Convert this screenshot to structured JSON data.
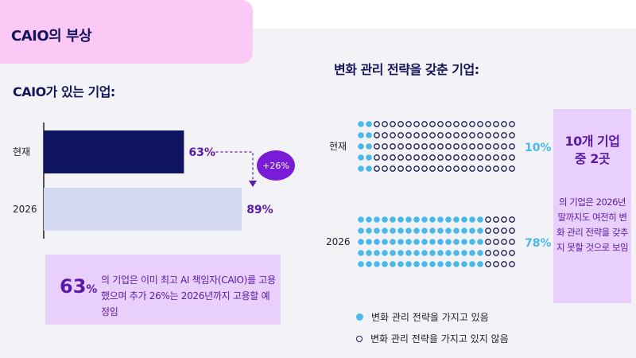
{
  "title": "CAIO의 부상",
  "subtitle_left": "CAIO가 있는 기업:",
  "subtitle_right": "변화 관리 전략을 갖춘 기업:",
  "chart_data": [
    {
      "type": "bar",
      "orientation": "horizontal",
      "title": "CAIO가 있는 기업:",
      "categories": [
        "현재",
        "2026"
      ],
      "values": [
        63,
        89
      ],
      "value_labels": [
        "63%",
        "89%"
      ],
      "change_label": "+26%",
      "xlim": [
        0,
        100
      ],
      "colors": [
        "#0f1560",
        "#d5daf2"
      ]
    },
    {
      "type": "dot-matrix",
      "title": "변화 관리 전략을 갖춘 기업:",
      "categories": [
        "현재",
        "2026"
      ],
      "values": [
        10,
        78
      ],
      "value_labels": [
        "10%",
        "78%"
      ],
      "rows": 5,
      "cols": 20,
      "legend": [
        {
          "label": "변화 관리 전략을 가지고 있음",
          "color": "#49b8ea"
        },
        {
          "label": "변화 관리 전략을 가지고 있지 않음",
          "color": "#1b1b57"
        }
      ]
    }
  ],
  "callout_left": {
    "pct_number": "63",
    "pct_sign": "%",
    "text": "의 기업은 이미 최고 AI 책임자(CAIO)를 고용했으며 추가 26%는 2026년까지 고용할 예정임"
  },
  "callout_right": {
    "head_line1": "10개 기업",
    "head_line2": "중 2곳",
    "text": "의 기업은 2026년 말까지도 여전히 변화 관리 전략을 갖추지 못할 것으로 보임"
  },
  "colors": {
    "navy": "#0f1560",
    "light_bar": "#d5daf2",
    "purple": "#5a1aa8",
    "accent_blue": "#49b8ea",
    "pink": "#fcc9f6",
    "lavender": "#e9cffb"
  }
}
